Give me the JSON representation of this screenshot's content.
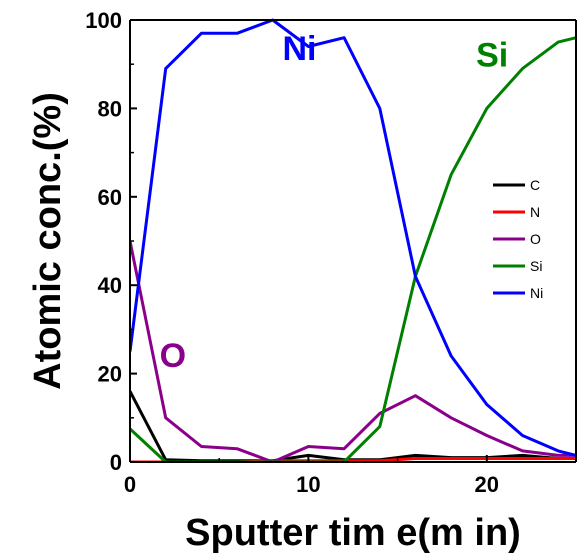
{
  "chart_data": {
    "type": "line",
    "xlabel": "Sputter tim e(m in)",
    "ylabel": "Atomic conc.(%)",
    "xlim": [
      0,
      25
    ],
    "ylim": [
      0,
      100
    ],
    "x_ticks": [
      0,
      10,
      20
    ],
    "y_ticks": [
      0,
      20,
      40,
      60,
      80,
      100
    ],
    "grid": false,
    "legend_position": "right-middle",
    "series": [
      {
        "name": "C",
        "color": "#000000",
        "x": [
          0,
          2,
          4,
          6,
          8,
          10,
          12,
          14,
          16,
          18,
          20,
          22,
          24,
          25
        ],
        "values": [
          16,
          0.5,
          0.3,
          0.3,
          0.3,
          1.5,
          0.5,
          0.5,
          1.5,
          1,
          1,
          1.5,
          0.8,
          0.8
        ]
      },
      {
        "name": "N",
        "color": "#ff0000",
        "x": [
          0,
          2,
          4,
          6,
          8,
          10,
          12,
          14,
          16,
          18,
          20,
          22,
          24,
          25
        ],
        "values": [
          0,
          0,
          0,
          0,
          0.3,
          0.3,
          0.3,
          0.3,
          0.8,
          0.8,
          0.8,
          0.8,
          0.8,
          0.8
        ]
      },
      {
        "name": "O",
        "color": "#8b008b",
        "x": [
          0,
          2,
          4,
          6,
          8,
          10,
          12,
          14,
          16,
          18,
          20,
          22,
          24,
          25
        ],
        "values": [
          50,
          10,
          3.5,
          3,
          0,
          3.5,
          3,
          11,
          15,
          10,
          6,
          2.5,
          1.5,
          1.5
        ]
      },
      {
        "name": "Si",
        "color": "#008000",
        "x": [
          0,
          2,
          4,
          6,
          8,
          10,
          12,
          14,
          16,
          18,
          20,
          22,
          24,
          25
        ],
        "values": [
          7.5,
          0,
          0,
          0,
          0,
          0,
          0,
          8,
          42,
          65,
          80,
          89,
          95,
          96
        ]
      },
      {
        "name": "Ni",
        "color": "#0000ff",
        "x": [
          0,
          2,
          4,
          6,
          8,
          10,
          12,
          14,
          16,
          18,
          20,
          22,
          24,
          25
        ],
        "values": [
          25,
          89,
          97,
          97,
          100,
          94,
          96,
          80,
          42,
          24,
          13,
          6,
          2.5,
          1.5
        ]
      }
    ],
    "annotations": [
      {
        "text": "Ni",
        "color": "#0000ff",
        "x": 9.5,
        "y": 91
      },
      {
        "text": "Si",
        "color": "#008000",
        "x": 20.3,
        "y": 89.5
      },
      {
        "text": "O",
        "color": "#8b008b",
        "x": 2.4,
        "y": 21.5
      }
    ]
  }
}
